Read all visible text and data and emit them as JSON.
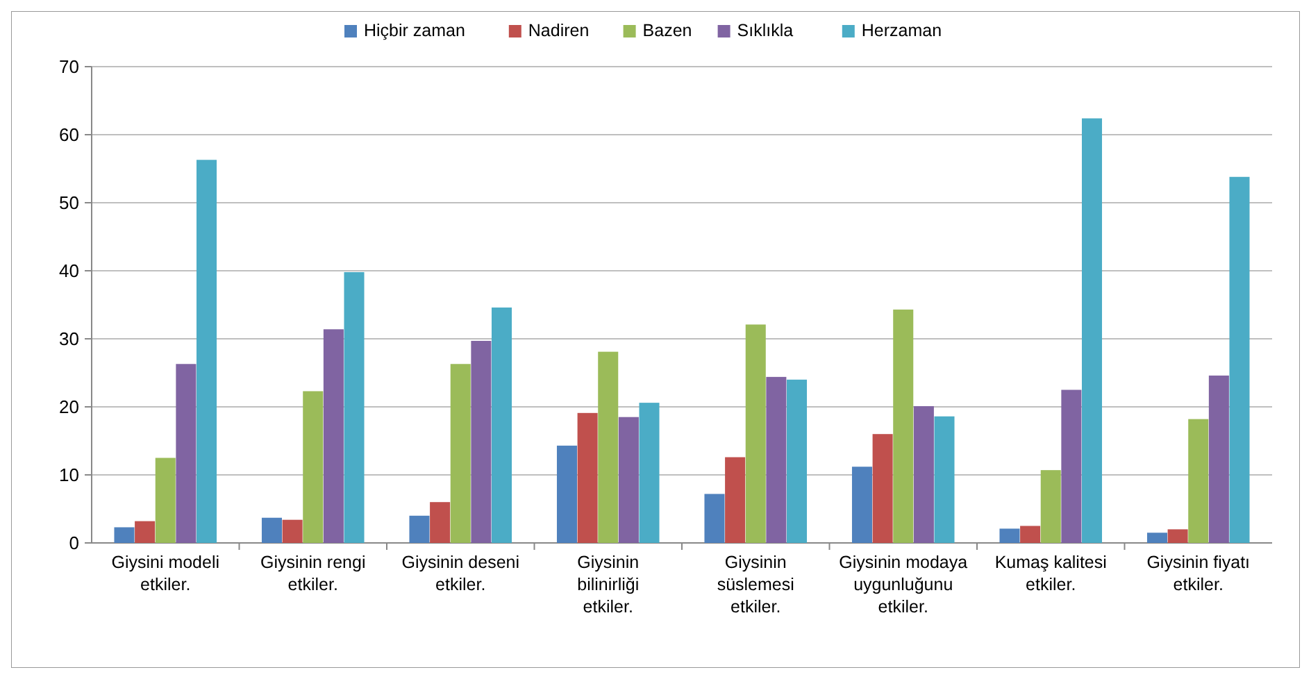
{
  "chart_data": {
    "type": "bar",
    "categories": [
      "Giysini modeli etkiler.",
      "Giysinin rengi etkiler.",
      "Giysinin deseni etkiler.",
      "Giysinin bilinirliği etkiler.",
      "Giysinin süslemesi etkiler.",
      "Giysinin modaya uygunluğunu etkiler.",
      "Kumaş kalitesi etkiler.",
      "Giysinin fiyatı etkiler."
    ],
    "series": [
      {
        "name": "Hiçbir zaman",
        "color": "#4f81bd",
        "values": [
          2.3,
          3.7,
          4.0,
          14.3,
          7.2,
          11.2,
          2.1,
          1.5
        ]
      },
      {
        "name": "Nadiren",
        "color": "#c0504d",
        "values": [
          3.2,
          3.4,
          6.0,
          19.1,
          12.6,
          16.0,
          2.5,
          2.0
        ]
      },
      {
        "name": "Bazen",
        "color": "#9bbb59",
        "values": [
          12.5,
          22.3,
          26.3,
          28.1,
          32.1,
          34.3,
          10.7,
          18.2
        ]
      },
      {
        "name": "Sıklıkla",
        "color": "#8064a2",
        "values": [
          26.3,
          31.4,
          29.7,
          18.5,
          24.4,
          20.1,
          22.5,
          24.6
        ]
      },
      {
        "name": "Herzaman",
        "color": "#4bacc6",
        "values": [
          56.3,
          39.8,
          34.6,
          20.6,
          24.0,
          18.6,
          62.4,
          53.8
        ]
      }
    ],
    "ylim": [
      0,
      70
    ],
    "yticks": [
      0,
      10,
      20,
      30,
      40,
      50,
      60,
      70
    ],
    "grid": "y",
    "legend": "top"
  }
}
